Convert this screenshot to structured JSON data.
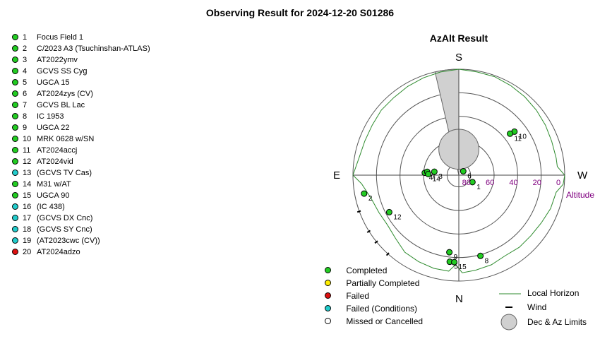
{
  "page_title": "Observing Result for 2024-12-20 S01286",
  "colors": {
    "completed": "#22cc22",
    "partial": "#ffee00",
    "failed": "#dd1111",
    "failed_conditions": "#22cccc",
    "missed": "#ffffff",
    "horizon": "#2e8b2e",
    "altitude_label": "#800080",
    "limits_fill": "#d0d0d0"
  },
  "targets": [
    {
      "num": "1",
      "name": "Focus Field 1",
      "status": "completed"
    },
    {
      "num": "2",
      "name": "C/2023 A3 (Tsuchinshan-ATLAS)",
      "status": "completed"
    },
    {
      "num": "3",
      "name": "AT2022ymv",
      "status": "completed"
    },
    {
      "num": "4",
      "name": "GCVS SS Cyg",
      "status": "completed"
    },
    {
      "num": "5",
      "name": "UGCA 15",
      "status": "completed"
    },
    {
      "num": "6",
      "name": "AT2024zys (CV)",
      "status": "completed"
    },
    {
      "num": "7",
      "name": "GCVS BL Lac",
      "status": "completed"
    },
    {
      "num": "8",
      "name": "IC 1953",
      "status": "completed"
    },
    {
      "num": "9",
      "name": "UGCA 22",
      "status": "completed"
    },
    {
      "num": "10",
      "name": "MRK 0628 w/SN",
      "status": "completed"
    },
    {
      "num": "11",
      "name": "AT2024accj",
      "status": "completed"
    },
    {
      "num": "12",
      "name": "AT2024vid",
      "status": "completed"
    },
    {
      "num": "13",
      "name": "(GCVS TV Cas)",
      "status": "failed_conditions"
    },
    {
      "num": "14",
      "name": "M31 w/AT",
      "status": "completed"
    },
    {
      "num": "15",
      "name": "UGCA 90",
      "status": "completed"
    },
    {
      "num": "16",
      "name": "(IC 438)",
      "status": "failed_conditions"
    },
    {
      "num": "17",
      "name": "(GCVS DX Cnc)",
      "status": "failed_conditions"
    },
    {
      "num": "18",
      "name": "(GCVS SY Cnc)",
      "status": "failed_conditions"
    },
    {
      "num": "19",
      "name": "(AT2023cwc (CV))",
      "status": "failed_conditions"
    },
    {
      "num": "20",
      "name": "AT2024adzo",
      "status": "failed"
    }
  ],
  "chart_data": {
    "type": "scatter",
    "title": "AzAlt Result",
    "projection": "polar-azimuth-altitude",
    "directions": {
      "top": "S",
      "right": "W",
      "bottom": "N",
      "left": "E"
    },
    "altitude_rings": [
      0,
      20,
      40,
      60,
      80
    ],
    "altitude_tick_labels": [
      "80",
      "60",
      "40",
      "20",
      "0"
    ],
    "axis_label": "Altitude",
    "points": [
      {
        "label": "1",
        "az": 117,
        "alt": 77,
        "status": "completed"
      },
      {
        "label": "2",
        "az": 259,
        "alt": 8,
        "status": "completed"
      },
      {
        "label": "3",
        "az": 278,
        "alt": 69,
        "status": "completed"
      },
      {
        "label": "4",
        "az": 274,
        "alt": 61,
        "status": "completed"
      },
      {
        "label": "5",
        "az": 186,
        "alt": 16,
        "status": "completed"
      },
      {
        "label": "6",
        "az": 49,
        "alt": 85,
        "status": "completed"
      },
      {
        "label": "7",
        "az": 276,
        "alt": 63,
        "status": "completed"
      },
      {
        "label": "8",
        "az": 165,
        "alt": 19,
        "status": "completed"
      },
      {
        "label": "9",
        "az": 187,
        "alt": 24,
        "status": "completed"
      },
      {
        "label": "10",
        "az": 52,
        "alt": 30,
        "status": "completed"
      },
      {
        "label": "11",
        "az": 51,
        "alt": 34,
        "status": "completed"
      },
      {
        "label": "12",
        "az": 242,
        "alt": 23,
        "status": "completed"
      },
      {
        "label": "14",
        "az": 272,
        "alt": 64,
        "status": "completed"
      },
      {
        "label": "15",
        "az": 183,
        "alt": 16,
        "status": "completed"
      }
    ],
    "horizon_profile": [
      {
        "az": 0,
        "alt": 0
      },
      {
        "az": 10,
        "alt": 1
      },
      {
        "az": 20,
        "alt": 1
      },
      {
        "az": 30,
        "alt": 2
      },
      {
        "az": 40,
        "alt": 3
      },
      {
        "az": 50,
        "alt": 4
      },
      {
        "az": 60,
        "alt": 5
      },
      {
        "az": 70,
        "alt": 6
      },
      {
        "az": 80,
        "alt": 6
      },
      {
        "az": 85,
        "alt": 6
      },
      {
        "az": 90,
        "alt": 0
      },
      {
        "az": 95,
        "alt": 1
      },
      {
        "az": 100,
        "alt": 6
      },
      {
        "az": 110,
        "alt": 7
      },
      {
        "az": 120,
        "alt": 9
      },
      {
        "az": 130,
        "alt": 10
      },
      {
        "az": 140,
        "alt": 10
      },
      {
        "az": 150,
        "alt": 11
      },
      {
        "az": 160,
        "alt": 9
      },
      {
        "az": 170,
        "alt": 8
      },
      {
        "az": 178,
        "alt": 7
      },
      {
        "az": 182,
        "alt": 14
      },
      {
        "az": 186,
        "alt": 8
      },
      {
        "az": 195,
        "alt": 8
      },
      {
        "az": 205,
        "alt": 9
      },
      {
        "az": 215,
        "alt": 10
      },
      {
        "az": 225,
        "alt": 14
      },
      {
        "az": 235,
        "alt": 16
      },
      {
        "az": 245,
        "alt": 15
      },
      {
        "az": 255,
        "alt": 13
      },
      {
        "az": 265,
        "alt": 7
      },
      {
        "az": 270,
        "alt": 0
      },
      {
        "az": 280,
        "alt": 4
      },
      {
        "az": 290,
        "alt": 5
      },
      {
        "az": 300,
        "alt": 5
      },
      {
        "az": 310,
        "alt": 4
      },
      {
        "az": 320,
        "alt": 4
      },
      {
        "az": 330,
        "alt": 3
      },
      {
        "az": 340,
        "alt": 2
      },
      {
        "az": 350,
        "alt": 1
      },
      {
        "az": 360,
        "alt": 0
      }
    ],
    "wind_marks": [
      {
        "az": 222,
        "alt": 0
      },
      {
        "az": 231,
        "alt": 0
      },
      {
        "az": 238,
        "alt": 0
      },
      {
        "az": 250,
        "alt": 0
      }
    ],
    "limits": {
      "dec_circle": {
        "az": 0,
        "alt": 68,
        "radius_deg": 17
      },
      "az_wedge": {
        "az_from": 347,
        "az_to": 0
      }
    }
  },
  "legend": {
    "items": [
      {
        "label": "Completed",
        "status": "completed"
      },
      {
        "label": "Partially Completed",
        "status": "partial"
      },
      {
        "label": "Failed",
        "status": "failed"
      },
      {
        "label": "Failed (Conditions)",
        "status": "failed_conditions"
      },
      {
        "label": "Missed or Cancelled",
        "status": "missed"
      }
    ],
    "local_horizon": "Local Horizon",
    "wind": "Wind",
    "limits": "Dec & Az Limits"
  }
}
